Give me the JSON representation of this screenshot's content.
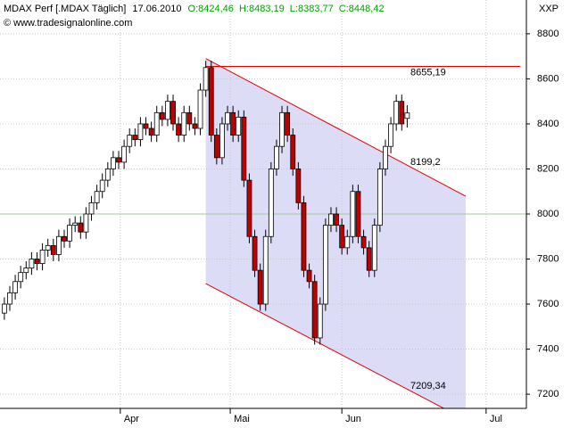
{
  "chart_data": {
    "type": "candlestick",
    "title": "MDAX Perf [.MDAX  Täglich]",
    "date": "17.06.2010",
    "ohlc": [
      "O:8424,46",
      "H:8483,19",
      "L:8383,77",
      "C:8448,42"
    ],
    "ohlc_color": "#00a000",
    "copyright": "© www.tradesignalonline.com",
    "y_axis_label": "XXP",
    "up_color": "#ffffff",
    "down_color": "#c00000",
    "open": [
      7560,
      7600,
      7650,
      7700,
      7740,
      7760,
      7800,
      7780,
      7840,
      7860,
      7820,
      7900,
      7880,
      7950,
      7960,
      7920,
      8000,
      8050,
      8100,
      8150,
      8200,
      8250,
      8230,
      8300,
      8350,
      8330,
      8400,
      8380,
      8350,
      8450,
      8420,
      8500,
      8400,
      8350,
      8450,
      8400,
      8380,
      8550,
      8650,
      8350,
      8250,
      8400,
      8450,
      8350,
      8430,
      8150,
      7900,
      7750,
      7600,
      7900,
      8200,
      8300,
      8450,
      8350,
      8200,
      8050,
      7750,
      7700,
      7450,
      7600,
      7950,
      8000,
      7950,
      7850,
      7900,
      8100,
      7900,
      7850,
      7750,
      7950,
      8200,
      8300,
      8400,
      8500,
      8424.46
    ],
    "high": [
      7630,
      7680,
      7730,
      7770,
      7790,
      7830,
      7830,
      7870,
      7890,
      7890,
      7930,
      7930,
      7980,
      7990,
      7990,
      8030,
      8080,
      8130,
      8180,
      8230,
      8280,
      8280,
      8330,
      8380,
      8380,
      8430,
      8430,
      8410,
      8480,
      8480,
      8530,
      8530,
      8430,
      8480,
      8480,
      8430,
      8580,
      8680,
      8680,
      8380,
      8430,
      8480,
      8480,
      8460,
      8460,
      8180,
      7930,
      7780,
      7930,
      8230,
      8330,
      8480,
      8480,
      8380,
      8230,
      8080,
      7780,
      7730,
      7630,
      7980,
      8030,
      8030,
      7980,
      7930,
      8130,
      8130,
      7930,
      7880,
      7980,
      8230,
      8330,
      8430,
      8530,
      8530,
      8483.19
    ],
    "low": [
      7530,
      7570,
      7620,
      7670,
      7710,
      7730,
      7750,
      7750,
      7810,
      7790,
      7790,
      7850,
      7850,
      7920,
      7890,
      7890,
      7970,
      8020,
      8070,
      8120,
      8170,
      8200,
      8200,
      8270,
      8300,
      8300,
      8350,
      8320,
      8320,
      8390,
      8390,
      8370,
      8320,
      8320,
      8370,
      8350,
      8350,
      8520,
      8320,
      8220,
      8220,
      8370,
      8320,
      8320,
      8120,
      7870,
      7720,
      7570,
      7570,
      7870,
      8170,
      8270,
      8320,
      8170,
      8020,
      7720,
      7670,
      7420,
      7420,
      7570,
      7920,
      7920,
      7820,
      7820,
      7870,
      7870,
      7820,
      7720,
      7720,
      7920,
      8170,
      8270,
      8370,
      8370,
      8383.77
    ],
    "close": [
      7600,
      7650,
      7700,
      7740,
      7760,
      7800,
      7780,
      7840,
      7860,
      7820,
      7900,
      7880,
      7950,
      7960,
      7920,
      8000,
      8050,
      8100,
      8150,
      8200,
      8250,
      8230,
      8300,
      8350,
      8330,
      8400,
      8380,
      8350,
      8450,
      8420,
      8500,
      8400,
      8350,
      8450,
      8400,
      8380,
      8550,
      8650,
      8350,
      8250,
      8400,
      8450,
      8350,
      8430,
      8150,
      7900,
      7750,
      7600,
      7900,
      8200,
      8300,
      8450,
      8350,
      8200,
      8050,
      7750,
      7700,
      7450,
      7600,
      7950,
      8000,
      7950,
      7850,
      7900,
      8100,
      7900,
      7850,
      7750,
      7950,
      8200,
      8300,
      8400,
      8500,
      8400,
      8448.42
    ],
    "xlim": [
      -0.8,
      95.9
    ],
    "xticks": [
      {
        "value": 21.3,
        "label": "Apr"
      },
      {
        "value": 41.5,
        "label": "Mai"
      },
      {
        "value": 62,
        "label": "Jun"
      },
      {
        "value": 88.5,
        "label": "Jul"
      }
    ],
    "ylim": [
      7137,
      8950
    ],
    "yticks": [
      7200,
      7400,
      7600,
      7800,
      8000,
      8200,
      8400,
      8600,
      8800
    ],
    "grid": true,
    "reference_line": {
      "value": 8000,
      "color": "#a0c8a0"
    },
    "channel_color": "#dcdcf6",
    "annotations": [
      {
        "label": "8655,19",
        "x": [
          37,
          94.8
        ],
        "y": [
          8655.19,
          8655.19
        ],
        "color": "#e00000"
      },
      {
        "label": "8199,2",
        "x": [
          37,
          84.75
        ],
        "y": [
          8690,
          8079
        ],
        "color": "#e00000"
      },
      {
        "label": "7209,34",
        "x": [
          37,
          82
        ],
        "y": [
          7691,
          7121
        ],
        "color": "#e00000"
      }
    ]
  }
}
